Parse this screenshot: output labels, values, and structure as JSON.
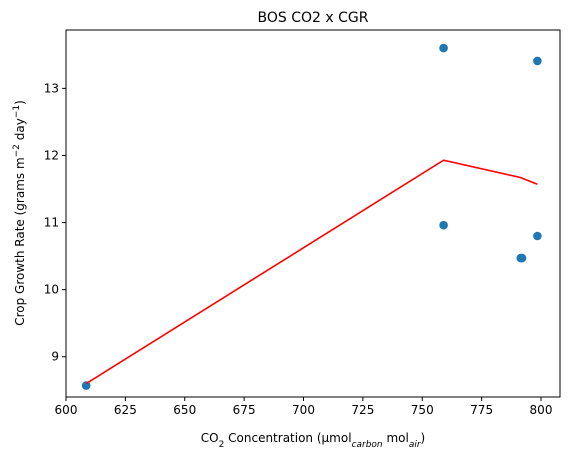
{
  "chart_data": {
    "type": "scatter",
    "title": "BOS CO2 x CGR",
    "xlabel": {
      "prefix": "CO",
      "sub1": "2",
      "middle": " Concentration (μmol",
      "sub2": "carbon",
      "middle2": " mol",
      "sub3": "air",
      "suffix": ")"
    },
    "ylabel": {
      "prefix": "Crop Growth Rate (grams m",
      "sup1": "−2",
      "middle": " day",
      "sup2": "−1",
      "suffix": ")"
    },
    "xlim": [
      600,
      808
    ],
    "ylim": [
      8.4,
      13.87
    ],
    "xticks": [
      600,
      625,
      650,
      675,
      700,
      725,
      750,
      775,
      800
    ],
    "yticks": [
      9,
      10,
      11,
      12,
      13
    ],
    "grid": false,
    "series": [
      {
        "kind": "scatter",
        "color": "#1f77b4",
        "points": [
          {
            "x": 608.5,
            "y": 8.57
          },
          {
            "x": 759,
            "y": 13.6
          },
          {
            "x": 759,
            "y": 10.96
          },
          {
            "x": 791.5,
            "y": 10.47
          },
          {
            "x": 792,
            "y": 10.47
          },
          {
            "x": 798.5,
            "y": 13.41
          },
          {
            "x": 798.5,
            "y": 10.8
          }
        ]
      },
      {
        "kind": "line",
        "color": "#ff0000",
        "points": [
          {
            "x": 608.5,
            "y": 8.6
          },
          {
            "x": 759,
            "y": 11.93
          },
          {
            "x": 791.5,
            "y": 11.67
          },
          {
            "x": 798.5,
            "y": 11.57
          }
        ]
      }
    ]
  }
}
